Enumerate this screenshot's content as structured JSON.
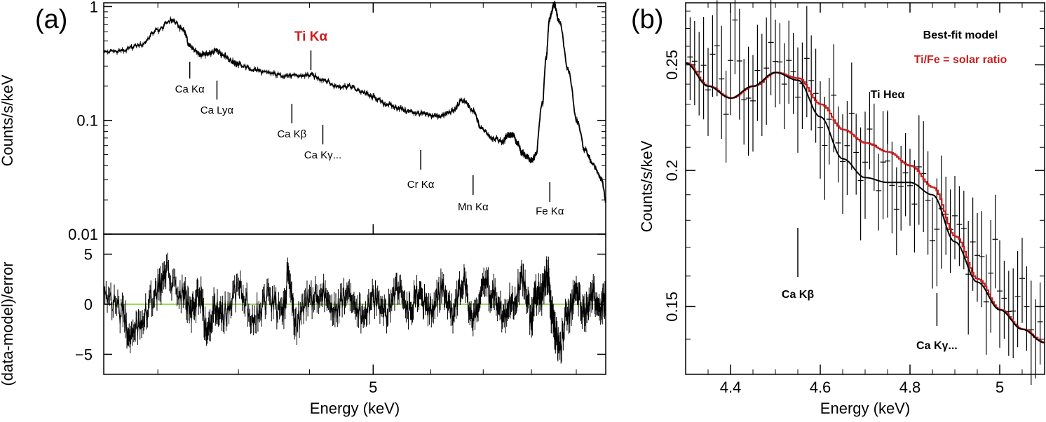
{
  "chart_data": [
    {
      "id": "panel-a",
      "type": "line",
      "panel_label": "(a)",
      "xlabel": "Energy (keV)",
      "xscale": "log",
      "xlim": [
        3.2,
        7.35
      ],
      "x_ticks": [
        {
          "value": 5,
          "label": "5"
        }
      ],
      "top": {
        "ylabel": "Counts/s/keV",
        "yscale": "log",
        "ylim": [
          0.01,
          1.08
        ],
        "y_ticks": [
          {
            "value": 1,
            "label": "1"
          },
          {
            "value": 0.1,
            "label": "0.1"
          },
          {
            "value": 0.01,
            "label": "0.01"
          }
        ],
        "series": [
          {
            "name": "spectrum",
            "color": "#000000",
            "x": [
              3.2,
              3.3,
              3.4,
              3.5,
              3.58,
              3.65,
              3.69,
              3.75,
              3.8,
              3.86,
              3.9,
              3.96,
              4.0,
              4.1,
              4.2,
              4.3,
              4.4,
              4.5,
              4.6,
              4.7,
              4.8,
              4.9,
              5.0,
              5.1,
              5.2,
              5.3,
              5.4,
              5.5,
              5.6,
              5.7,
              5.8,
              5.9,
              5.98,
              6.1,
              6.2,
              6.25,
              6.3,
              6.35,
              6.4,
              6.45,
              6.5,
              6.55,
              6.62,
              6.66,
              6.7,
              6.75,
              6.8,
              6.9,
              7.0,
              7.1,
              7.2,
              7.3,
              7.35
            ],
            "y": [
              0.4,
              0.41,
              0.46,
              0.62,
              0.76,
              0.63,
              0.45,
              0.38,
              0.38,
              0.41,
              0.38,
              0.33,
              0.31,
              0.28,
              0.26,
              0.25,
              0.245,
              0.25,
              0.23,
              0.2,
              0.2,
              0.18,
              0.16,
              0.14,
              0.13,
              0.12,
              0.115,
              0.11,
              0.11,
              0.12,
              0.15,
              0.12,
              0.085,
              0.07,
              0.065,
              0.075,
              0.075,
              0.062,
              0.052,
              0.048,
              0.044,
              0.05,
              0.14,
              0.35,
              0.8,
              1.05,
              0.75,
              0.28,
              0.1,
              0.055,
              0.04,
              0.03,
              0.02
            ]
          }
        ],
        "annotations": [
          {
            "label": "Ca Kα",
            "x": 3.69
          },
          {
            "label": "Ca Lyα",
            "x": 3.86
          },
          {
            "label": "Ca Kβ",
            "x": 4.37
          },
          {
            "label": "Ca Kγ...",
            "x": 4.6
          },
          {
            "label": "Ti Kα",
            "x": 4.51,
            "color": "#d01c1c"
          },
          {
            "label": "Cr Kα",
            "x": 5.41
          },
          {
            "label": "Mn Kα",
            "x": 5.9
          },
          {
            "label": "Fe Kα",
            "x": 6.7
          }
        ]
      },
      "bottom": {
        "ylabel": "(data-model)/error",
        "ylim": [
          -7,
          7
        ],
        "y_ticks": [
          {
            "value": 5,
            "label": "5"
          },
          {
            "value": 0,
            "label": "0"
          },
          {
            "value": -5,
            "label": "−5"
          }
        ],
        "zero_line_color": "#9bd85a",
        "series": [
          {
            "name": "residuals",
            "color": "#000000",
            "x": [
              3.2,
              3.3,
              3.35,
              3.42,
              3.5,
              3.55,
              3.65,
              3.7,
              3.75,
              3.8,
              3.85,
              3.9,
              4.0,
              4.1,
              4.2,
              4.3,
              4.35,
              4.4,
              4.5,
              4.6,
              4.7,
              4.8,
              4.9,
              5.0,
              5.1,
              5.2,
              5.3,
              5.4,
              5.5,
              5.6,
              5.7,
              5.8,
              5.9,
              6.0,
              6.1,
              6.2,
              6.3,
              6.4,
              6.5,
              6.55,
              6.62,
              6.68,
              6.72,
              6.75,
              6.8,
              6.9,
              7.0,
              7.1,
              7.2,
              7.3,
              7.35
            ],
            "y": [
              1.5,
              -1,
              -3.5,
              -1,
              1.5,
              3,
              1,
              -1,
              1,
              -3,
              0,
              -1,
              1.5,
              -1,
              0.5,
              -1,
              3,
              -2,
              0.5,
              1,
              -0.5,
              1.5,
              -1,
              0.5,
              -1,
              1.5,
              -0.5,
              1,
              -1,
              1.5,
              -1,
              2,
              -1.5,
              2,
              1,
              -1,
              0.5,
              2.5,
              -1.5,
              1,
              1,
              3,
              -1,
              -2.5,
              -4.5,
              -1,
              1,
              -1,
              1,
              0,
              0.5
            ]
          }
        ]
      }
    },
    {
      "id": "panel-b",
      "type": "line",
      "panel_label": "(b)",
      "xlabel": "Energy (keV)",
      "ylabel": "Counts/s/keV",
      "yscale": "log",
      "xlim": [
        4.3,
        5.1
      ],
      "ylim": [
        0.13,
        0.285
      ],
      "x_ticks": [
        {
          "value": 4.4,
          "label": "4.4"
        },
        {
          "value": 4.6,
          "label": "4.6"
        },
        {
          "value": 4.8,
          "label": "4.8"
        },
        {
          "value": 5.0,
          "label": "5"
        }
      ],
      "y_ticks": [
        {
          "value": 0.25,
          "label": "0.25"
        },
        {
          "value": 0.2,
          "label": "0.2"
        },
        {
          "value": 0.15,
          "label": "0.15"
        }
      ],
      "legend": [
        {
          "label": "Best-fit model",
          "color": "#000000"
        },
        {
          "label": "Ti/Fe = solar ratio",
          "color": "#c81e1e"
        }
      ],
      "series": [
        {
          "name": "Best-fit model",
          "color": "#000000",
          "x": [
            4.3,
            4.35,
            4.4,
            4.45,
            4.5,
            4.55,
            4.6,
            4.65,
            4.7,
            4.75,
            4.8,
            4.85,
            4.9,
            4.95,
            5.0,
            5.05,
            5.1
          ],
          "y": [
            0.251,
            0.239,
            0.233,
            0.239,
            0.246,
            0.242,
            0.224,
            0.205,
            0.197,
            0.195,
            0.195,
            0.19,
            0.172,
            0.158,
            0.149,
            0.143,
            0.139
          ]
        },
        {
          "name": "Ti/Fe = solar ratio",
          "color": "#c81e1e",
          "x": [
            4.3,
            4.35,
            4.4,
            4.45,
            4.5,
            4.55,
            4.6,
            4.65,
            4.7,
            4.75,
            4.8,
            4.85,
            4.9,
            4.95,
            5.0,
            5.05,
            5.1
          ],
          "y": [
            0.251,
            0.239,
            0.233,
            0.239,
            0.246,
            0.243,
            0.23,
            0.218,
            0.212,
            0.208,
            0.202,
            0.193,
            0.174,
            0.159,
            0.149,
            0.143,
            0.139
          ]
        },
        {
          "name": "data",
          "color": "#000000",
          "x": [
            4.31,
            4.33,
            4.35,
            4.37,
            4.39,
            4.41,
            4.43,
            4.45,
            4.47,
            4.49,
            4.51,
            4.53,
            4.55,
            4.57,
            4.59,
            4.61,
            4.63,
            4.65,
            4.67,
            4.69,
            4.71,
            4.73,
            4.75,
            4.77,
            4.79,
            4.81,
            4.83,
            4.85,
            4.87,
            4.89,
            4.91,
            4.93,
            4.95,
            4.97,
            4.99,
            5.01,
            5.03,
            5.05,
            5.07,
            5.09
          ],
          "y": [
            0.255,
            0.248,
            0.235,
            0.262,
            0.232,
            0.275,
            0.225,
            0.24,
            0.238,
            0.26,
            0.245,
            0.25,
            0.232,
            0.255,
            0.228,
            0.215,
            0.23,
            0.205,
            0.222,
            0.19,
            0.215,
            0.195,
            0.2,
            0.188,
            0.205,
            0.19,
            0.2,
            0.175,
            0.19,
            0.18,
            0.178,
            0.165,
            0.172,
            0.155,
            0.168,
            0.15,
            0.148,
            0.155,
            0.14,
            0.145
          ]
        }
      ],
      "annotations": [
        {
          "label": "Ti Heα",
          "x": 4.75
        },
        {
          "label": "Ca Kβ",
          "x": 4.55
        },
        {
          "label": "Ca Kγ...",
          "x": 4.86
        }
      ]
    }
  ]
}
